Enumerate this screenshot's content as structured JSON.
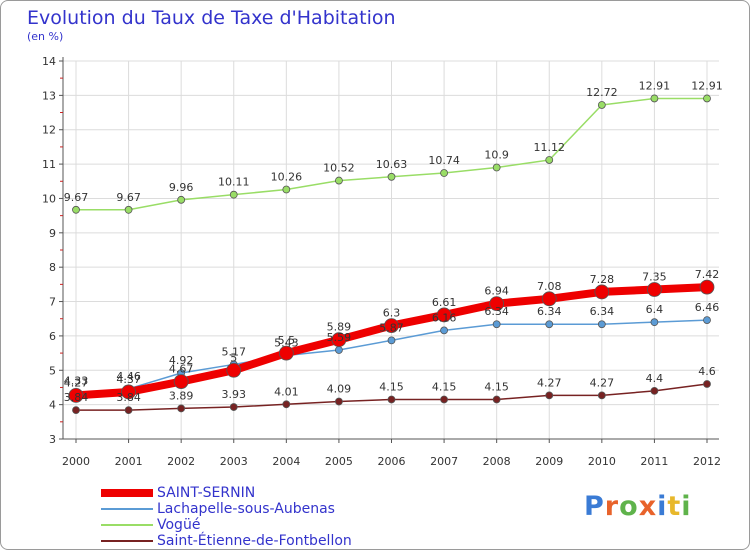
{
  "title": "Evolution du Taux de Taxe d'Habitation",
  "subtitle": "(en %)",
  "brand": {
    "text": "Proxiti",
    "colors": [
      "#3a7bd5",
      "#e8632b",
      "#5fb34b",
      "#e8632b",
      "#3a7bd5",
      "#e8b82b",
      "#5fb34b"
    ]
  },
  "chart_data": {
    "type": "line",
    "x": [
      "2000",
      "2001",
      "2002",
      "2003",
      "2004",
      "2005",
      "2006",
      "2007",
      "2008",
      "2009",
      "2010",
      "2011",
      "2012"
    ],
    "ylim": [
      3,
      14
    ],
    "yticks": [
      "3",
      "4",
      "5",
      "6",
      "7",
      "8",
      "9",
      "10",
      "11",
      "12",
      "13",
      "14"
    ],
    "grid": true,
    "legend_position": "bottom-left",
    "series": [
      {
        "name": "SAINT-SERNIN",
        "color": "#ee0000",
        "values": [
          4.27,
          4.37,
          4.67,
          5.0,
          5.5,
          5.89,
          6.3,
          6.61,
          6.94,
          7.08,
          7.28,
          7.35,
          7.42
        ],
        "labels": [
          "4.27",
          "4.37",
          "4.67",
          "5",
          "5.5",
          "5.89",
          "6.3",
          "6.61",
          "6.94",
          "7.08",
          "7.28",
          "7.35",
          "7.42"
        ]
      },
      {
        "name": "Lachapelle-sous-Aubenas",
        "color": "#5b9bd5",
        "values": [
          4.33,
          4.46,
          4.92,
          5.17,
          5.43,
          5.59,
          5.87,
          6.16,
          6.34,
          6.34,
          6.34,
          6.4,
          6.46
        ],
        "labels": [
          "4.33",
          "4.46",
          "4.92",
          "5.17",
          "5.43",
          "5.59",
          "5.87",
          "6.16",
          "6.34",
          "6.34",
          "6.34",
          "6.4",
          "6.46"
        ]
      },
      {
        "name": "Vogüé",
        "color": "#99dd66",
        "values": [
          9.67,
          9.67,
          9.96,
          10.11,
          10.26,
          10.52,
          10.63,
          10.74,
          10.9,
          11.12,
          12.72,
          12.91,
          12.91
        ],
        "labels": [
          "9.67",
          "9.67",
          "9.96",
          "10.11",
          "10.26",
          "10.52",
          "10.63",
          "10.74",
          "10.9",
          "11.12",
          "12.72",
          "12.91",
          "12.91"
        ]
      },
      {
        "name": "Saint-Étienne-de-Fontbellon",
        "color": "#772222",
        "values": [
          3.84,
          3.84,
          3.89,
          3.93,
          4.01,
          4.09,
          4.15,
          4.15,
          4.15,
          4.27,
          4.27,
          4.4,
          4.6
        ],
        "labels": [
          "3.84",
          "3.84",
          "3.89",
          "3.93",
          "4.01",
          "4.09",
          "4.15",
          "4.15",
          "4.15",
          "4.27",
          "4.27",
          "4.4",
          "4.6"
        ]
      }
    ]
  }
}
